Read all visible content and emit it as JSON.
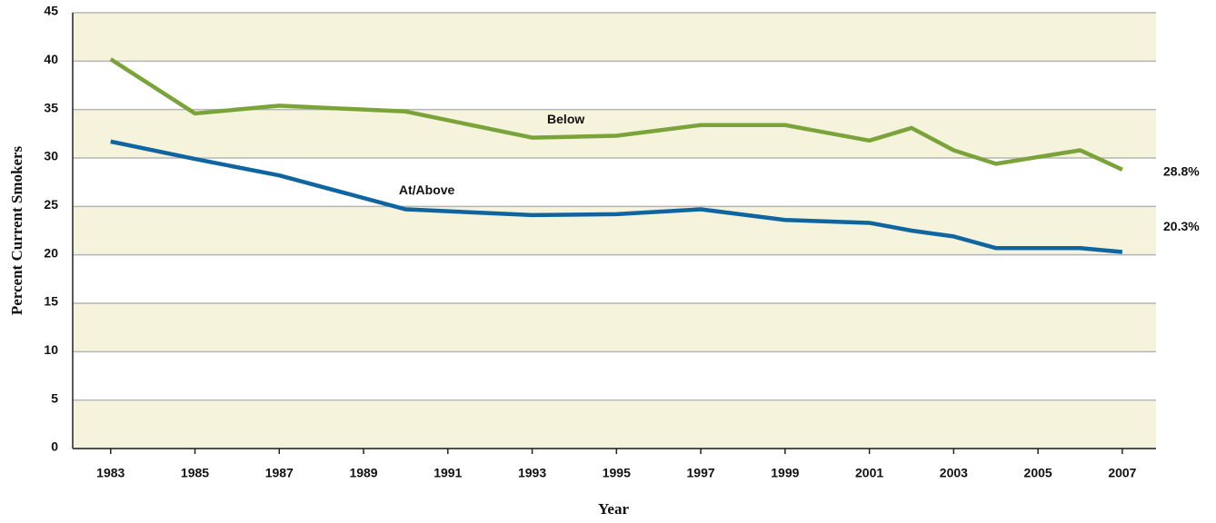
{
  "chart_data": {
    "type": "line",
    "x_label": "Year",
    "y_label": "Percent Current Smokers",
    "xlim": [
      1982.1,
      2007.8
    ],
    "ylim": [
      0,
      45
    ],
    "xticks": [
      1983,
      1985,
      1987,
      1989,
      1991,
      1993,
      1995,
      1997,
      1999,
      2001,
      2003,
      2005,
      2007
    ],
    "yticks": [
      0,
      5,
      10,
      15,
      20,
      25,
      30,
      35,
      40,
      45
    ],
    "grid": true,
    "band_color": "#f5f3dc",
    "series": [
      {
        "name": "Below",
        "color": "#7aa33a",
        "x": [
          1983,
          1985,
          1987,
          1990,
          1993,
          1995,
          1997,
          1999,
          2001,
          2002,
          2003,
          2004,
          2006,
          2007
        ],
        "values": [
          40.2,
          34.6,
          35.4,
          34.8,
          32.1,
          32.3,
          33.4,
          33.4,
          31.8,
          33.1,
          30.8,
          29.4,
          30.8,
          28.8
        ],
        "end_label": "28.8%"
      },
      {
        "name": "At/Above",
        "color": "#0f65a0",
        "x": [
          1983,
          1985,
          1987,
          1990,
          1993,
          1995,
          1997,
          1999,
          2001,
          2002,
          2003,
          2004,
          2006,
          2007
        ],
        "values": [
          31.7,
          29.9,
          28.2,
          24.7,
          24.1,
          24.2,
          24.7,
          23.6,
          23.3,
          22.5,
          21.9,
          20.7,
          20.7,
          20.3
        ],
        "end_label": "20.3%"
      }
    ],
    "annotations": [
      {
        "text": "Below",
        "x": 1993.8,
        "y": 33.9
      },
      {
        "text": "At/Above",
        "x": 1990.5,
        "y": 26.6
      }
    ]
  }
}
